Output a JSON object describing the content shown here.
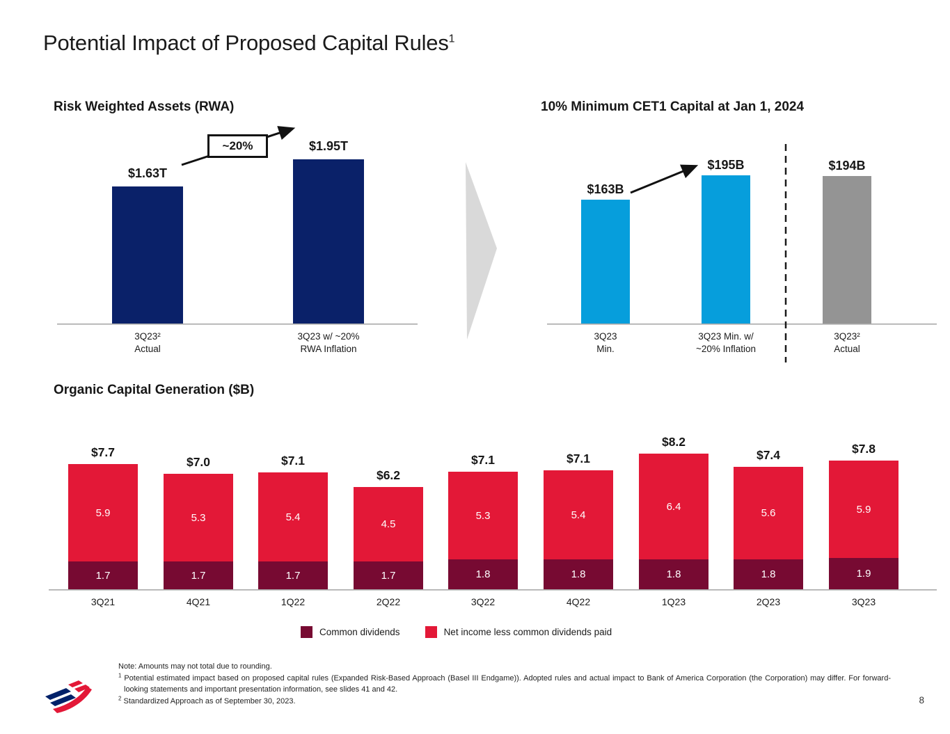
{
  "slide": {
    "title": "Potential Impact of Proposed Capital Rules",
    "title_superscript": "1",
    "page_number": "8"
  },
  "colors": {
    "navy": "#0a2169",
    "light_blue": "#069edc",
    "gray_bar": "#949494",
    "red": "#e31837",
    "maroon": "#770a32",
    "arrow_gray": "#d9d9d9",
    "logo_blue": "#012169"
  },
  "chart_data": [
    {
      "id": "rwa",
      "type": "bar",
      "title": "Risk Weighted Assets (RWA)",
      "unit": "trillions of dollars",
      "callout": "~20%",
      "bars": [
        {
          "label_line1": "3Q23²",
          "label_line2": "Actual",
          "value": 1.63,
          "value_label": "$1.63T",
          "color": "#0a2169"
        },
        {
          "label_line1": "3Q23 w/ ~20%",
          "label_line2": "RWA Inflation",
          "value": 1.95,
          "value_label": "$1.95T",
          "color": "#0a2169"
        }
      ]
    },
    {
      "id": "cet1",
      "type": "bar",
      "title": "10% Minimum CET1 Capital at Jan 1, 2024",
      "unit": "billions of dollars",
      "bars": [
        {
          "label_line1": "3Q23",
          "label_line2": "Min.",
          "value": 163,
          "value_label": "$163B",
          "color": "#069edc"
        },
        {
          "label_line1": "3Q23 Min. w/",
          "label_line2": "~20% Inflation",
          "value": 195,
          "value_label": "$195B",
          "color": "#069edc"
        },
        {
          "label_line1": "3Q23²",
          "label_line2": "Actual",
          "value": 194,
          "value_label": "$194B",
          "color": "#949494"
        }
      ]
    },
    {
      "id": "ocg",
      "type": "stacked-bar",
      "title": "Organic Capital Generation ($B)",
      "categories": [
        "3Q21",
        "4Q21",
        "1Q22",
        "2Q22",
        "3Q22",
        "4Q22",
        "1Q23",
        "2Q23",
        "3Q23"
      ],
      "series": [
        {
          "name": "Common dividends",
          "color": "#770a32",
          "values": [
            1.7,
            1.7,
            1.7,
            1.7,
            1.8,
            1.8,
            1.8,
            1.8,
            1.9
          ]
        },
        {
          "name": "Net income less common dividends paid",
          "color": "#e31837",
          "values": [
            5.9,
            5.3,
            5.4,
            4.5,
            5.3,
            5.4,
            6.4,
            5.6,
            5.9
          ]
        }
      ],
      "totals": [
        "$7.7",
        "$7.0",
        "$7.1",
        "$6.2",
        "$7.1",
        "$7.1",
        "$8.2",
        "$7.4",
        "$7.8"
      ],
      "legend_position": "bottom"
    }
  ],
  "footnotes": {
    "note": "Note: Amounts may not total due to rounding.",
    "fn1_sup": "1",
    "fn1": "Potential estimated impact based on proposed capital rules (Expanded Risk-Based Approach (Basel III Endgame)). Adopted rules and actual impact to Bank of America Corporation (the Corporation) may differ. For forward-looking statements and important presentation information, see slides 41 and 42.",
    "fn2_sup": "2",
    "fn2": "Standardized Approach as of September 30, 2023."
  }
}
